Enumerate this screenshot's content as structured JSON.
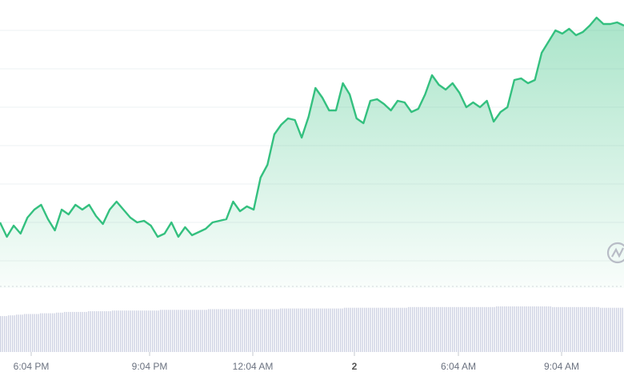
{
  "chart_data": {
    "type": "area",
    "title": "",
    "xlabel": "",
    "ylabel": "",
    "x_ticks": [
      "6:04 PM",
      "9:04 PM",
      "12:04 AM",
      "2",
      "6:04 AM",
      "9:04 AM"
    ],
    "bold_ticks": [
      "2"
    ],
    "grid": true,
    "ylim": [
      0,
      360
    ],
    "series": [
      {
        "values": [
          82,
          64,
          78,
          68,
          88,
          98,
          104,
          86,
          72,
          98,
          92,
          104,
          98,
          104,
          90,
          80,
          98,
          108,
          98,
          88,
          82,
          84,
          78,
          64,
          68,
          82,
          64,
          76,
          66,
          70,
          74,
          82,
          84,
          86,
          108,
          96,
          102,
          98,
          138,
          154,
          192,
          204,
          212,
          210,
          188,
          214,
          250,
          238,
          222,
          222,
          256,
          242,
          212,
          206,
          234,
          236,
          230,
          222,
          234,
          232,
          220,
          224,
          242,
          266,
          254,
          248,
          256,
          244,
          226,
          232,
          226,
          234,
          208,
          220,
          226,
          260,
          262,
          256,
          260,
          294,
          308,
          322,
          318,
          324,
          316,
          320,
          328,
          338,
          330,
          330,
          332,
          328
        ]
      }
    ],
    "volume": [
      52,
      53,
      54,
      55,
      55,
      56,
      56,
      57,
      58,
      58,
      58,
      59,
      59,
      59,
      60,
      60,
      60,
      60,
      60,
      60,
      61,
      61,
      61,
      61,
      61,
      61,
      62,
      62,
      62,
      62,
      62,
      62,
      62,
      62,
      62,
      63,
      63,
      63,
      63,
      63,
      63,
      63,
      63,
      64,
      64,
      64,
      64,
      64,
      64,
      64,
      64,
      65,
      65,
      65,
      65,
      65,
      65,
      65,
      65,
      65,
      65,
      65,
      66,
      66,
      66,
      66,
      66,
      66,
      66,
      65,
      65,
      65,
      65,
      65,
      65,
      64,
      64,
      64
    ],
    "colors": {
      "line": "#34c07f",
      "fill": "#34c07f",
      "volume": "#cfd3e3",
      "grid": "#eef0f3",
      "logo": "#b8bcc6"
    },
    "watermark": "coingecko-logo"
  }
}
